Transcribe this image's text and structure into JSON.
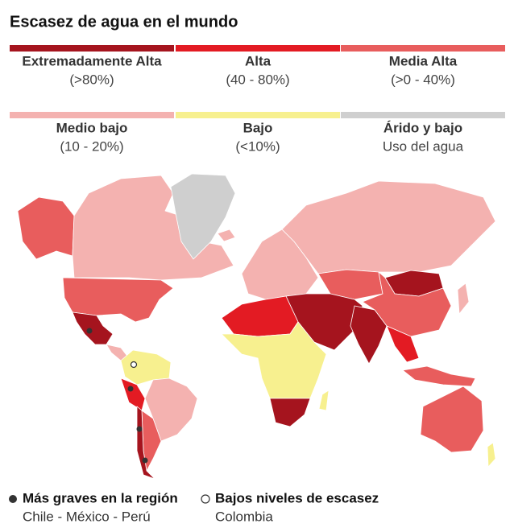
{
  "header": {
    "title": "Escasez de agua en el mundo"
  },
  "legend": [
    {
      "label": "Extremadamente Alta",
      "sublabel": "(>80%)",
      "color": "#a5141e"
    },
    {
      "label": "Alta",
      "sublabel": "(40 - 80%)",
      "color": "#e31b23"
    },
    {
      "label": "Media Alta",
      "sublabel": "(>0 - 40%)",
      "color": "#e85d5d"
    },
    {
      "label": "Medio bajo",
      "sublabel": "(10 - 20%)",
      "color": "#f4b2b0"
    },
    {
      "label": "Bajo",
      "sublabel": "(<10%)",
      "color": "#f7f08f"
    },
    {
      "label": "Árido y bajo",
      "sublabel": "Uso del agua",
      "color": "#cfcfcf"
    }
  ],
  "footer": [
    {
      "label": "Más graves en la región",
      "sublabel": "Chile - México - Perú"
    },
    {
      "label": "Bajos niveles de escasez",
      "sublabel": "Colombia"
    }
  ]
}
